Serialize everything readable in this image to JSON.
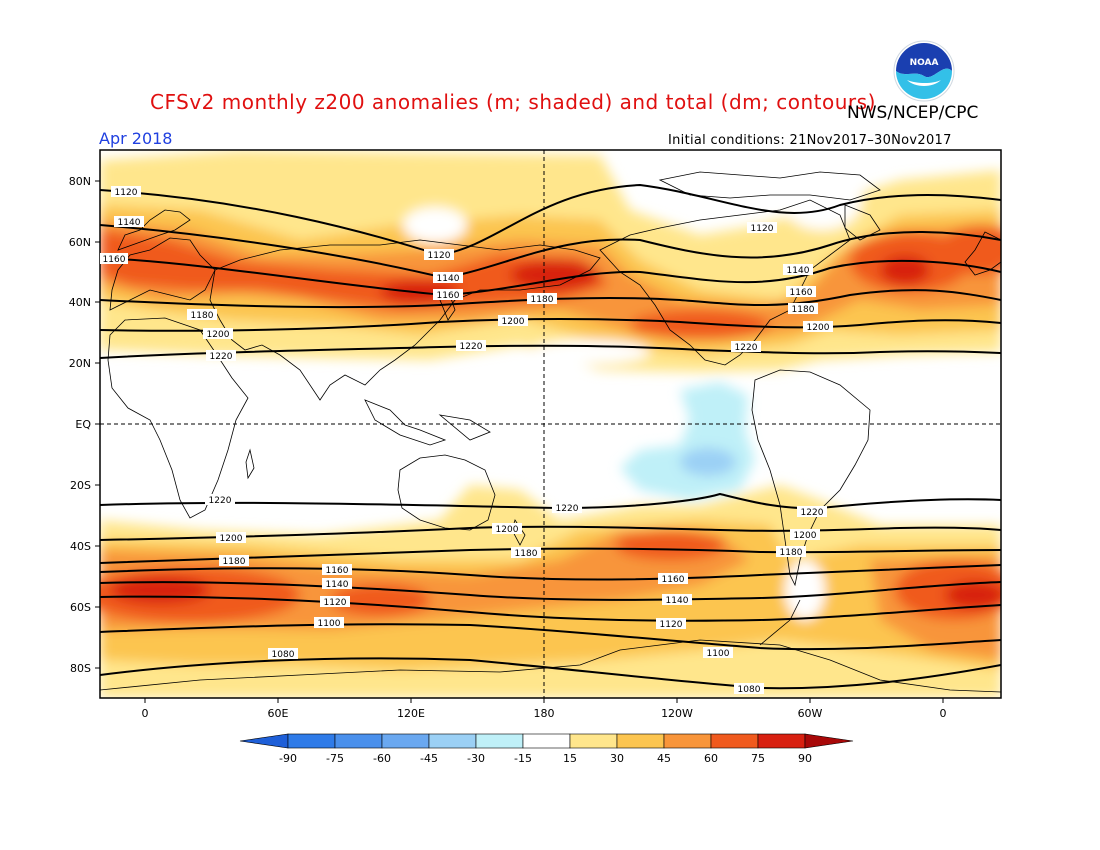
{
  "header": {
    "title": "CFSv2 monthly z200 anomalies (m; shaded) and total (dm; contours)",
    "agency": "NWS/NCEP/CPC",
    "period": "Apr 2018",
    "initial_conditions": "Initial conditions: 21Nov2017–30Nov2017"
  },
  "logo": {
    "text": "NOAA",
    "icon": "noaa-logo-icon"
  },
  "map": {
    "lat_labels": [
      "80N",
      "60N",
      "40N",
      "20N",
      "EQ",
      "20S",
      "40S",
      "60S",
      "80S"
    ],
    "lon_labels": [
      "0",
      "60E",
      "120E",
      "180",
      "120W",
      "60W",
      "0"
    ],
    "contour_labels": [
      {
        "text": "1120"
      },
      {
        "text": "1140"
      },
      {
        "text": "1160"
      },
      {
        "text": "1120"
      },
      {
        "text": "1140"
      },
      {
        "text": "1160"
      },
      {
        "text": "1180"
      },
      {
        "text": "1200"
      },
      {
        "text": "1220"
      },
      {
        "text": "1180"
      },
      {
        "text": "1200"
      },
      {
        "text": "1220"
      },
      {
        "text": "1120"
      },
      {
        "text": "1140"
      },
      {
        "text": "1160"
      },
      {
        "text": "1180"
      },
      {
        "text": "1200"
      },
      {
        "text": "1220"
      },
      {
        "text": "1220"
      },
      {
        "text": "1220"
      },
      {
        "text": "1220"
      },
      {
        "text": "1200"
      },
      {
        "text": "1200"
      },
      {
        "text": "1200"
      },
      {
        "text": "1180"
      },
      {
        "text": "1180"
      },
      {
        "text": "1180"
      },
      {
        "text": "1160"
      },
      {
        "text": "1160"
      },
      {
        "text": "1140"
      },
      {
        "text": "1140"
      },
      {
        "text": "1120"
      },
      {
        "text": "1120"
      },
      {
        "text": "1100"
      },
      {
        "text": "1100"
      },
      {
        "text": "1080"
      },
      {
        "text": "1080"
      }
    ]
  },
  "colorbar": {
    "labels": [
      "-90",
      "-75",
      "-60",
      "-45",
      "-30",
      "-15",
      "15",
      "30",
      "45",
      "60",
      "75",
      "90"
    ],
    "colors": [
      "#1e5fd8",
      "#2f7be8",
      "#4a90ec",
      "#6aa8f0",
      "#9bd0f5",
      "#bff0f8",
      "#ffffff",
      "#ffe68c",
      "#fcc550",
      "#f8953a",
      "#f05a1e",
      "#d82010",
      "#a80808"
    ]
  }
}
